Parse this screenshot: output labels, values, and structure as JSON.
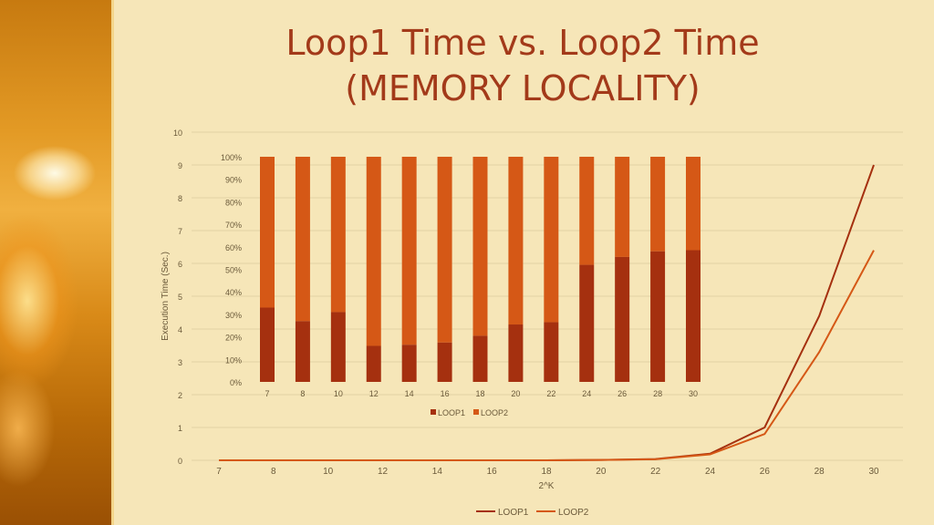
{
  "slide": {
    "title_line1": "Loop1 Time vs. Loop2 Time",
    "title_line2": "(MEMORY LOCALITY)"
  },
  "colors": {
    "loop1": "#a5300f",
    "loop2": "#d55816",
    "grid": "#e3d3a4",
    "axis_text": "#6b5a3a"
  },
  "chart_data": [
    {
      "type": "line",
      "x": [
        "7",
        "8",
        "10",
        "12",
        "14",
        "16",
        "18",
        "20",
        "22",
        "24",
        "26",
        "28",
        "30"
      ],
      "xlabel": "2^K",
      "ylabel": "Execution Time (Sec.)",
      "ylim": [
        0,
        10
      ],
      "yticks": [
        0,
        1,
        2,
        3,
        4,
        5,
        6,
        7,
        8,
        9,
        10
      ],
      "grid": true,
      "legend": "bottom",
      "series": [
        {
          "name": "LOOP1",
          "values": [
            0,
            0,
            0,
            0,
            0,
            0,
            0,
            0.01,
            0.04,
            0.2,
            1.0,
            4.4,
            9.0
          ]
        },
        {
          "name": "LOOP2",
          "values": [
            0,
            0,
            0,
            0,
            0,
            0,
            0,
            0.01,
            0.03,
            0.18,
            0.8,
            3.3,
            6.4
          ]
        }
      ]
    },
    {
      "type": "bar",
      "stacked": "percent",
      "categories": [
        "7",
        "8",
        "10",
        "12",
        "14",
        "16",
        "18",
        "20",
        "22",
        "24",
        "26",
        "28",
        "30"
      ],
      "ylim": [
        0,
        100
      ],
      "yticks": [
        "0%",
        "10%",
        "20%",
        "30%",
        "40%",
        "50%",
        "60%",
        "70%",
        "80%",
        "90%",
        "100%"
      ],
      "legend": "bottom",
      "series": [
        {
          "name": "LOOP1",
          "values": [
            33,
            27,
            31,
            16,
            16.5,
            17.5,
            20.5,
            25.5,
            26.5,
            52,
            55.5,
            58,
            58.5
          ]
        },
        {
          "name": "LOOP2",
          "values": [
            67,
            73,
            69,
            84,
            83.5,
            82.5,
            79.5,
            74.5,
            73.5,
            48,
            44.5,
            42,
            41.5
          ]
        }
      ]
    }
  ]
}
